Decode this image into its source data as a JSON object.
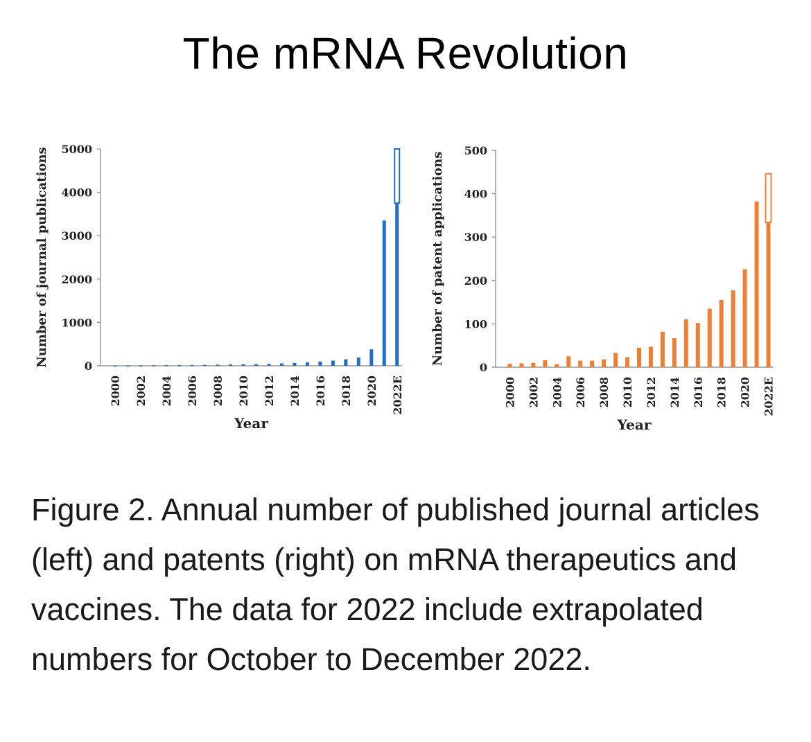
{
  "page": {
    "title": "The mRNA Revolution",
    "caption": "Figure 2. Annual number of published journal articles (left) and patents (right) on mRNA therapeutics and vaccines. The data for 2022 include extrapolated numbers for October to December 2022."
  },
  "colors": {
    "journal_bar": "#1f6fc9",
    "patent_bar": "#f07f36",
    "axis": "#999999"
  },
  "chart_data": [
    {
      "type": "bar",
      "categories": [
        "2000",
        "2001",
        "2002",
        "2003",
        "2004",
        "2005",
        "2006",
        "2007",
        "2008",
        "2009",
        "2010",
        "2011",
        "2012",
        "2013",
        "2014",
        "2015",
        "2016",
        "2017",
        "2018",
        "2019",
        "2020",
        "2021",
        "2022E"
      ],
      "tick_labels": [
        "2000",
        "2002",
        "2004",
        "2006",
        "2008",
        "2010",
        "2012",
        "2014",
        "2016",
        "2018",
        "2020",
        "2022E"
      ],
      "values": [
        5,
        8,
        10,
        12,
        15,
        18,
        20,
        22,
        25,
        30,
        35,
        38,
        45,
        55,
        65,
        80,
        100,
        120,
        150,
        190,
        380,
        3350,
        3750
      ],
      "extrapolated_total_2022E": 5000,
      "xlabel": "Year",
      "ylabel": "Number of journal publications",
      "ylim": [
        0,
        5000
      ],
      "yticks": [
        0,
        1000,
        2000,
        3000,
        4000,
        5000
      ],
      "grid": false,
      "color": "#1f6fc9"
    },
    {
      "type": "bar",
      "categories": [
        "2000",
        "2001",
        "2002",
        "2003",
        "2004",
        "2005",
        "2006",
        "2007",
        "2008",
        "2009",
        "2010",
        "2011",
        "2012",
        "2013",
        "2014",
        "2015",
        "2016",
        "2017",
        "2018",
        "2019",
        "2020",
        "2021",
        "2022E"
      ],
      "tick_labels": [
        "2000",
        "2002",
        "2004",
        "2006",
        "2008",
        "2010",
        "2012",
        "2014",
        "2016",
        "2018",
        "2020",
        "2022E"
      ],
      "values": [
        8,
        9,
        10,
        16,
        7,
        25,
        15,
        15,
        18,
        33,
        23,
        45,
        47,
        82,
        67,
        110,
        102,
        135,
        155,
        177,
        226,
        382,
        334
      ],
      "extrapolated_total_2022E": 446,
      "xlabel": "Year",
      "ylabel": "Number of patent applications",
      "ylim": [
        0,
        500
      ],
      "yticks": [
        0,
        100,
        200,
        300,
        400,
        500
      ],
      "grid": false,
      "color": "#f07f36"
    }
  ]
}
